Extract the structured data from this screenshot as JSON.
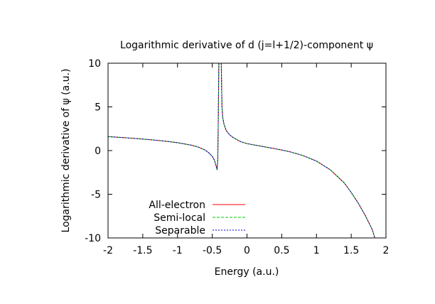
{
  "chart_data": {
    "type": "line",
    "title": "Logarithmic derivative of d (j=l+1/2)-component ψ",
    "xlabel": "Energy (a.u.)",
    "ylabel": "Logarithmic derivative of ψ (a.u.)",
    "xlim": [
      -2,
      2
    ],
    "ylim": [
      -10,
      10
    ],
    "xticks": [
      "-2",
      "-1.5",
      "-1",
      "-0.5",
      "0",
      "0.5",
      "1",
      "1.5",
      "2"
    ],
    "yticks": [
      "10",
      "5",
      "0",
      "-5",
      "-10"
    ],
    "grid": false,
    "legend_position": "bottom-left",
    "series": [
      {
        "name": "All-electron",
        "color": "#ff0000",
        "dash": "solid",
        "segments": [
          [
            [
              -2.0,
              1.6
            ],
            [
              -1.8,
              1.5
            ],
            [
              -1.6,
              1.38
            ],
            [
              -1.4,
              1.25
            ],
            [
              -1.2,
              1.1
            ],
            [
              -1.0,
              0.9
            ],
            [
              -0.8,
              0.62
            ],
            [
              -0.7,
              0.4
            ],
            [
              -0.6,
              0.05
            ],
            [
              -0.55,
              -0.25
            ],
            [
              -0.5,
              -0.65
            ],
            [
              -0.47,
              -1.1
            ],
            [
              -0.45,
              -1.6
            ],
            [
              -0.43,
              -2.2
            ],
            [
              -0.42,
              -1.0
            ],
            [
              -0.415,
              2.0
            ],
            [
              -0.41,
              6.0
            ],
            [
              -0.405,
              10.0
            ]
          ],
          [
            [
              -0.37,
              10.0
            ],
            [
              -0.365,
              7.5
            ],
            [
              -0.36,
              5.0
            ],
            [
              -0.35,
              3.8
            ],
            [
              -0.33,
              3.0
            ],
            [
              -0.3,
              2.3
            ],
            [
              -0.25,
              1.8
            ],
            [
              -0.2,
              1.5
            ],
            [
              -0.1,
              1.05
            ],
            [
              0.0,
              0.8
            ],
            [
              0.2,
              0.5
            ],
            [
              0.4,
              0.22
            ],
            [
              0.6,
              -0.1
            ],
            [
              0.8,
              -0.55
            ],
            [
              1.0,
              -1.2
            ],
            [
              1.2,
              -2.2
            ],
            [
              1.4,
              -3.7
            ],
            [
              1.5,
              -4.8
            ],
            [
              1.6,
              -6.0
            ],
            [
              1.7,
              -7.4
            ],
            [
              1.8,
              -9.0
            ],
            [
              1.84,
              -10.0
            ]
          ]
        ]
      },
      {
        "name": "Semi-local",
        "color": "#00cc00",
        "dash": "dashed",
        "segments": [
          [
            [
              -2.0,
              1.6
            ],
            [
              -1.8,
              1.5
            ],
            [
              -1.6,
              1.38
            ],
            [
              -1.4,
              1.25
            ],
            [
              -1.2,
              1.1
            ],
            [
              -1.0,
              0.9
            ],
            [
              -0.8,
              0.62
            ],
            [
              -0.7,
              0.4
            ],
            [
              -0.6,
              0.05
            ],
            [
              -0.55,
              -0.25
            ],
            [
              -0.5,
              -0.65
            ],
            [
              -0.47,
              -1.1
            ],
            [
              -0.45,
              -1.6
            ],
            [
              -0.43,
              -2.2
            ],
            [
              -0.42,
              -1.0
            ],
            [
              -0.415,
              2.0
            ],
            [
              -0.41,
              6.0
            ],
            [
              -0.405,
              10.0
            ]
          ],
          [
            [
              -0.37,
              10.0
            ],
            [
              -0.365,
              7.5
            ],
            [
              -0.36,
              5.0
            ],
            [
              -0.35,
              3.8
            ],
            [
              -0.33,
              3.0
            ],
            [
              -0.3,
              2.3
            ],
            [
              -0.25,
              1.8
            ],
            [
              -0.2,
              1.5
            ],
            [
              -0.1,
              1.05
            ],
            [
              0.0,
              0.8
            ],
            [
              0.2,
              0.5
            ],
            [
              0.4,
              0.22
            ],
            [
              0.6,
              -0.1
            ],
            [
              0.8,
              -0.55
            ],
            [
              1.0,
              -1.2
            ],
            [
              1.2,
              -2.2
            ],
            [
              1.4,
              -3.7
            ],
            [
              1.5,
              -4.8
            ],
            [
              1.6,
              -6.0
            ],
            [
              1.7,
              -7.4
            ],
            [
              1.8,
              -9.0
            ],
            [
              1.84,
              -10.0
            ]
          ]
        ]
      },
      {
        "name": "Separable",
        "color": "#0000cc",
        "dash": "dotted",
        "segments": [
          [
            [
              -2.0,
              1.6
            ],
            [
              -1.8,
              1.5
            ],
            [
              -1.6,
              1.38
            ],
            [
              -1.4,
              1.25
            ],
            [
              -1.2,
              1.1
            ],
            [
              -1.0,
              0.9
            ],
            [
              -0.8,
              0.62
            ],
            [
              -0.7,
              0.4
            ],
            [
              -0.6,
              0.05
            ],
            [
              -0.55,
              -0.25
            ],
            [
              -0.5,
              -0.65
            ],
            [
              -0.47,
              -1.1
            ],
            [
              -0.45,
              -1.6
            ],
            [
              -0.43,
              -2.2
            ],
            [
              -0.42,
              -1.0
            ],
            [
              -0.415,
              2.0
            ],
            [
              -0.41,
              6.0
            ],
            [
              -0.405,
              10.0
            ]
          ],
          [
            [
              -0.37,
              10.0
            ],
            [
              -0.365,
              7.5
            ],
            [
              -0.36,
              5.0
            ],
            [
              -0.35,
              3.8
            ],
            [
              -0.33,
              3.0
            ],
            [
              -0.3,
              2.3
            ],
            [
              -0.25,
              1.8
            ],
            [
              -0.2,
              1.5
            ],
            [
              -0.1,
              1.05
            ],
            [
              0.0,
              0.8
            ],
            [
              0.2,
              0.5
            ],
            [
              0.4,
              0.22
            ],
            [
              0.6,
              -0.1
            ],
            [
              0.8,
              -0.55
            ],
            [
              1.0,
              -1.2
            ],
            [
              1.2,
              -2.2
            ],
            [
              1.4,
              -3.7
            ],
            [
              1.5,
              -4.8
            ],
            [
              1.6,
              -6.0
            ],
            [
              1.7,
              -7.4
            ],
            [
              1.8,
              -9.0
            ],
            [
              1.84,
              -10.0
            ]
          ]
        ]
      }
    ]
  }
}
